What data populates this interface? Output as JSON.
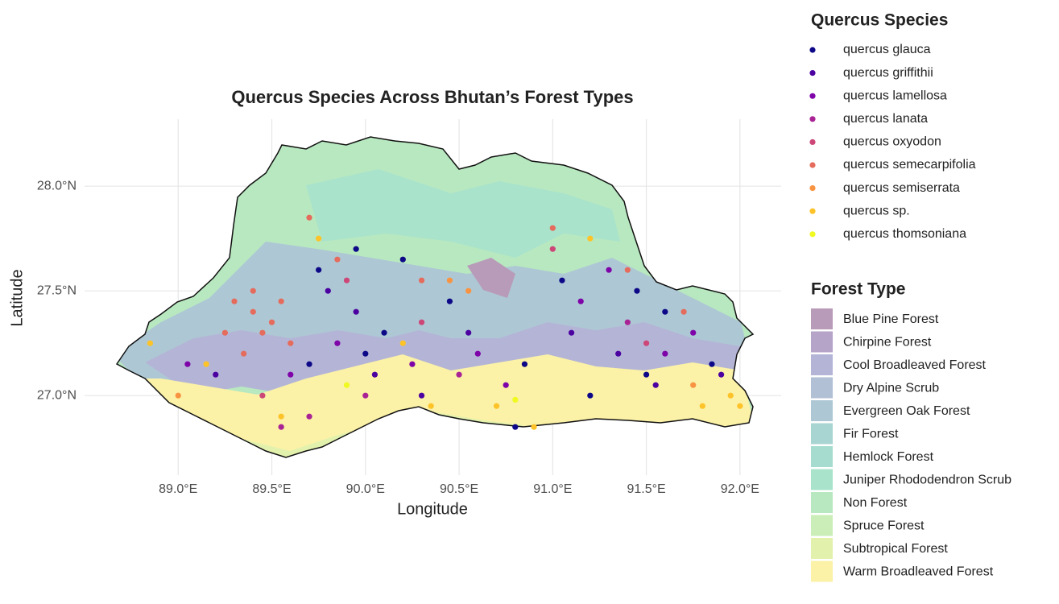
{
  "chart_data": {
    "type": "map",
    "title": "Quercus Species Across Bhutan’s Forest Types",
    "x_label": "Longitude",
    "y_label": "Latitude",
    "xlim": [
      88.5,
      92.22
    ],
    "ylim": [
      26.62,
      28.32
    ],
    "xticks": [
      {
        "value": 89.0,
        "label": "89.0°E"
      },
      {
        "value": 89.5,
        "label": "89.5°E"
      },
      {
        "value": 90.0,
        "label": "90.0°E"
      },
      {
        "value": 90.5,
        "label": "90.5°E"
      },
      {
        "value": 91.0,
        "label": "91.0°E"
      },
      {
        "value": 91.5,
        "label": "91.5°E"
      },
      {
        "value": 92.0,
        "label": "92.0°E"
      }
    ],
    "yticks": [
      {
        "value": 27.0,
        "label": "27.0°N"
      },
      {
        "value": 27.5,
        "label": "27.5°N"
      },
      {
        "value": 28.0,
        "label": "28.0°N"
      }
    ],
    "grid": true,
    "species_legend_title": "Quercus Species",
    "forest_legend_title": "Forest Type",
    "forest_types": [
      {
        "name": "Blue Pine Forest",
        "color": "#b89bb8"
      },
      {
        "name": "Chirpine Forest",
        "color": "#b6a3c8"
      },
      {
        "name": "Cool Broadleaved Forest",
        "color": "#b4b5d6"
      },
      {
        "name": "Dry Alpine Scrub",
        "color": "#b1c0d4"
      },
      {
        "name": "Evergreen Oak Forest",
        "color": "#adc8d4"
      },
      {
        "name": "Fir Forest",
        "color": "#a8d4d2"
      },
      {
        "name": "Hemlock Forest",
        "color": "#a6dccf"
      },
      {
        "name": "Juniper Rhododendron Scrub",
        "color": "#a9e3cb"
      },
      {
        "name": "Non Forest",
        "color": "#b8e8c0"
      },
      {
        "name": "Spruce Forest",
        "color": "#cbeeb8"
      },
      {
        "name": "Subtropical Forest",
        "color": "#e2f2ad"
      },
      {
        "name": "Warm Broadleaved Forest",
        "color": "#fbf1a7"
      }
    ],
    "series": [
      {
        "name": "quercus glauca",
        "color": "#0d0887",
        "x": [
          89.75,
          89.95,
          90.0,
          90.1,
          90.45,
          90.85,
          91.05,
          91.45,
          91.5,
          91.85,
          91.2,
          90.2,
          89.7,
          91.6,
          90.8
        ],
        "y": [
          27.6,
          27.7,
          27.2,
          27.3,
          27.45,
          27.15,
          27.55,
          27.5,
          27.1,
          27.15,
          27.0,
          27.65,
          27.15,
          27.4,
          26.85
        ]
      },
      {
        "name": "quercus griffithii",
        "color": "#4c02a1",
        "x": [
          89.8,
          89.95,
          90.05,
          90.55,
          91.1,
          91.35,
          91.55,
          89.2,
          90.3,
          91.9
        ],
        "y": [
          27.5,
          27.4,
          27.1,
          27.3,
          27.3,
          27.2,
          27.05,
          27.1,
          27.0,
          27.1
        ]
      },
      {
        "name": "quercus lamellosa",
        "color": "#7e03a8",
        "x": [
          89.6,
          89.85,
          90.25,
          90.6,
          91.15,
          91.3,
          91.6,
          89.05,
          90.75,
          91.75
        ],
        "y": [
          27.1,
          27.25,
          27.15,
          27.2,
          27.45,
          27.6,
          27.2,
          27.15,
          27.05,
          27.3
        ]
      },
      {
        "name": "quercus lanata",
        "color": "#a92395",
        "x": [
          89.7,
          90.0,
          90.5,
          91.4,
          89.55
        ],
        "y": [
          26.9,
          27.0,
          27.1,
          27.35,
          26.85
        ]
      },
      {
        "name": "quercus oxyodon",
        "color": "#cc4778",
        "x": [
          90.3,
          91.0,
          89.9,
          91.5,
          89.45
        ],
        "y": [
          27.35,
          27.7,
          27.55,
          27.25,
          27.0
        ]
      },
      {
        "name": "quercus semecarpifolia",
        "color": "#e56b5d",
        "x": [
          89.3,
          89.4,
          89.5,
          89.45,
          89.55,
          89.25,
          89.6,
          89.35,
          89.7,
          89.85,
          90.3,
          91.0,
          91.4,
          91.7,
          89.4
        ],
        "y": [
          27.45,
          27.4,
          27.35,
          27.3,
          27.45,
          27.3,
          27.25,
          27.2,
          27.85,
          27.65,
          27.55,
          27.8,
          27.6,
          27.4,
          27.5
        ]
      },
      {
        "name": "quercus semiserrata",
        "color": "#f89441",
        "x": [
          90.45,
          90.55,
          91.75,
          89.0
        ],
        "y": [
          27.55,
          27.5,
          27.05,
          27.0
        ]
      },
      {
        "name": "quercus sp.",
        "color": "#fdc328",
        "x": [
          88.85,
          89.15,
          89.55,
          90.2,
          90.35,
          90.7,
          90.9,
          91.2,
          91.95,
          92.0,
          91.8,
          89.75
        ],
        "y": [
          27.25,
          27.15,
          26.9,
          27.25,
          26.95,
          26.95,
          26.85,
          27.75,
          27.0,
          26.95,
          26.95,
          27.75
        ]
      },
      {
        "name": "quercus thomsoniana",
        "color": "#f0f921",
        "x": [
          89.9,
          90.8
        ],
        "y": [
          27.05,
          26.98
        ]
      }
    ]
  }
}
